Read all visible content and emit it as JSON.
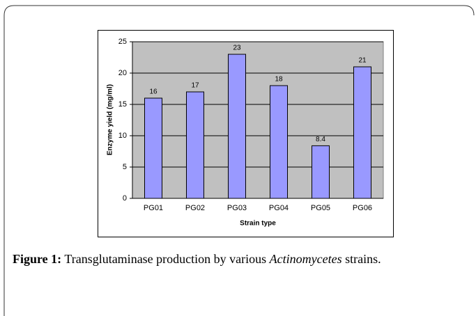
{
  "chart_data": {
    "type": "bar",
    "categories": [
      "PG01",
      "PG02",
      "PG03",
      "PG04",
      "PG05",
      "PG06"
    ],
    "values": [
      16,
      17,
      23,
      18,
      8.4,
      21
    ],
    "color": "#9999ff",
    "xlabel": "Strain type",
    "ylabel": "Enzyme yield (mg/ml)",
    "ylim": [
      0,
      25
    ],
    "yticks": [
      0,
      5,
      10,
      15,
      20,
      25
    ],
    "grid": true
  },
  "caption": {
    "label": "Figure 1:",
    "text_before": "Transglutaminase production by various",
    "italic": "Actinomycetes",
    "text_after": "strains."
  }
}
